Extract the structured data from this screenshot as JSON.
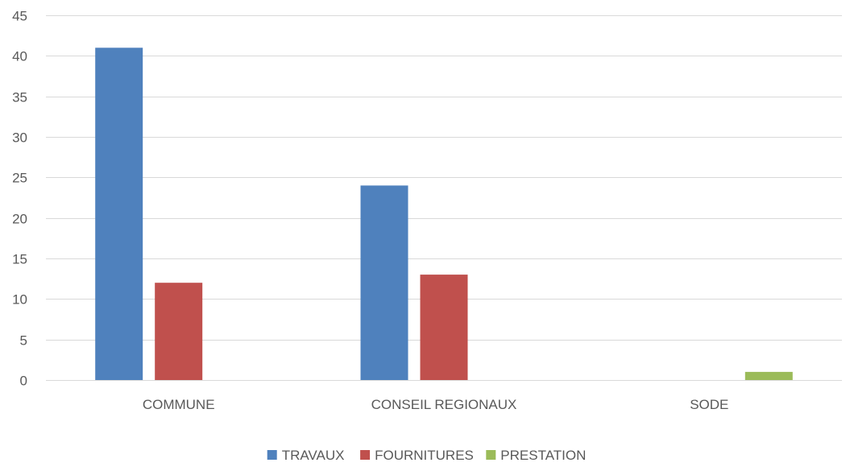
{
  "chart_data": {
    "type": "bar",
    "title": "",
    "xlabel": "",
    "ylabel": "",
    "categories": [
      "COMMUNE",
      "CONSEIL REGIONAUX",
      "SODE"
    ],
    "series": [
      {
        "name": "TRAVAUX",
        "values": [
          41,
          24,
          0
        ],
        "color": "#4f81bd"
      },
      {
        "name": "FOURNITURES",
        "values": [
          12,
          13,
          0
        ],
        "color": "#c0504d"
      },
      {
        "name": "PRESTATION",
        "values": [
          0,
          0,
          1
        ],
        "color": "#9bbb59"
      }
    ],
    "ylim": [
      0,
      45
    ],
    "yticks": [
      0,
      5,
      10,
      15,
      20,
      25,
      30,
      35,
      40,
      45
    ],
    "grid": true,
    "legend_position": "bottom-center",
    "colors": {
      "gridline": "#d9d9d9",
      "axis_text": "#595959"
    }
  }
}
